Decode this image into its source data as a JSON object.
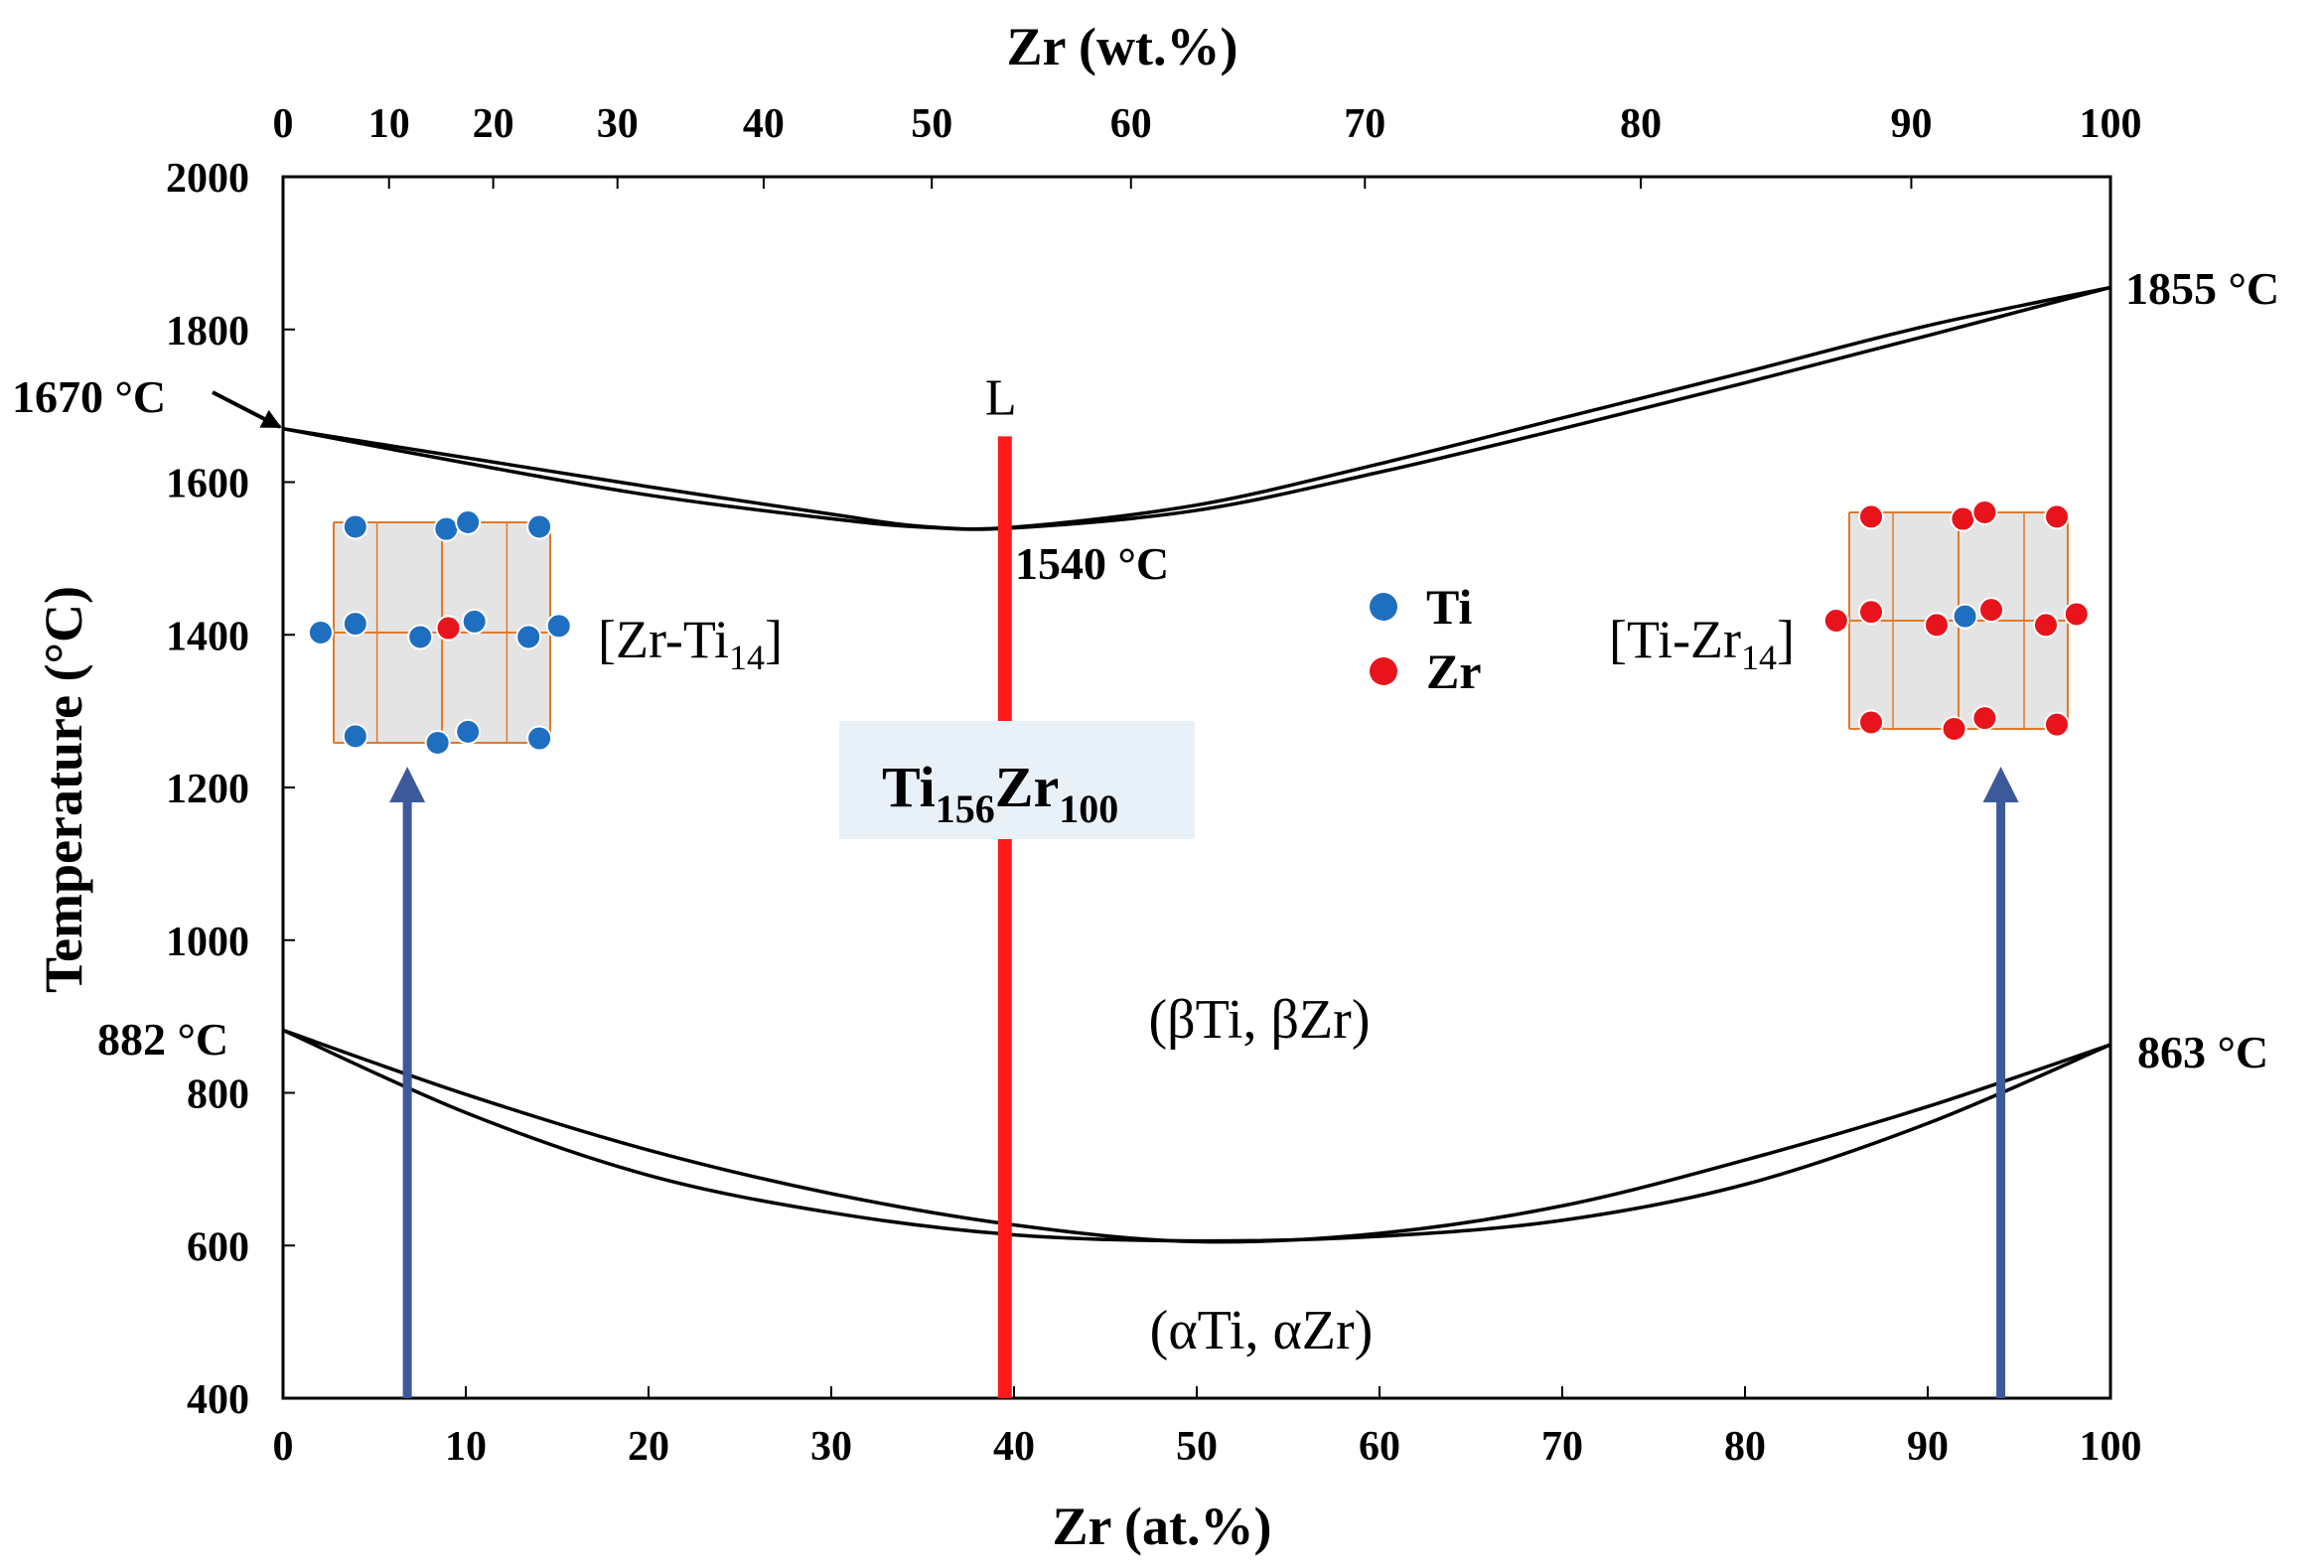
{
  "chart_data": {
    "type": "line",
    "title": "",
    "xlabel": "Zr (at.%)",
    "x2label": "Zr (wt.%)",
    "ylabel": "Temperature (°C)",
    "xlim": [
      0,
      100
    ],
    "ylim": [
      400,
      2000
    ],
    "x_ticks": [
      "0",
      "10",
      "20",
      "30",
      "40",
      "50",
      "60",
      "70",
      "80",
      "90",
      "100"
    ],
    "x_tick_values": [
      0,
      10,
      20,
      30,
      40,
      50,
      60,
      70,
      80,
      90,
      100
    ],
    "x2_ticks": [
      "0",
      "10",
      "20",
      "30",
      "40",
      "50",
      "60",
      "70",
      "80",
      "90",
      "100"
    ],
    "x2_tick_at_percent": [
      0,
      5.8,
      11.5,
      18.3,
      26.3,
      35.5,
      46.4,
      59.2,
      74.3,
      89.1,
      100
    ],
    "y_ticks": [
      "400",
      "600",
      "800",
      "1000",
      "1200",
      "1400",
      "1600",
      "1800",
      "2000"
    ],
    "y_tick_values": [
      400,
      600,
      800,
      1000,
      1200,
      1400,
      1600,
      1800,
      2000
    ],
    "series": [
      {
        "name": "liquidus",
        "x": [
          0,
          10,
          20,
          30,
          35,
          40,
          50,
          60,
          70,
          80,
          90,
          100
        ],
        "y": [
          1670,
          1632,
          1594,
          1558,
          1542,
          1541,
          1570,
          1624,
          1684,
          1744,
          1805,
          1855
        ]
      },
      {
        "name": "solidus",
        "x": [
          0,
          10,
          20,
          30,
          35,
          40,
          50,
          60,
          70,
          80,
          90,
          100
        ],
        "y": [
          1670,
          1625,
          1583,
          1552,
          1541,
          1540,
          1563,
          1613,
          1670,
          1730,
          1792,
          1855
        ]
      },
      {
        "name": "alpha-beta upper",
        "x": [
          0,
          10,
          20,
          30,
          40,
          50,
          60,
          70,
          80,
          90,
          100
        ],
        "y": [
          882,
          798,
          725,
          668,
          627,
          605,
          616,
          652,
          712,
          782,
          863
        ]
      },
      {
        "name": "alpha-beta lower",
        "x": [
          0,
          10,
          20,
          30,
          40,
          50,
          60,
          70,
          80,
          90,
          100
        ],
        "y": [
          882,
          774,
          692,
          643,
          614,
          606,
          612,
          633,
          680,
          760,
          863
        ]
      }
    ],
    "composition_line": {
      "x": 39.5,
      "y_from": 400,
      "y_to": 1660,
      "color": "#ff1a1a",
      "label": "L"
    },
    "annotations": [
      {
        "text": "1670 °C",
        "x": 0,
        "y": 1670
      },
      {
        "text": "1855 °C",
        "x": 100,
        "y": 1855
      },
      {
        "text": "1540 °C",
        "x": 39.5,
        "y": 1540
      },
      {
        "text": "882 °C",
        "x": 0,
        "y": 882
      },
      {
        "text": "863 °C",
        "x": 100,
        "y": 863
      }
    ],
    "phase_labels": {
      "beta": "(βTi, βZr)",
      "alpha": "(αTi, αZr)"
    },
    "composition_label": {
      "main1": "Ti",
      "sub1": "156",
      "main2": "Zr",
      "sub2": "100"
    },
    "legend": [
      {
        "label": "Ti",
        "color": "#1f6fc1"
      },
      {
        "label": "Zr",
        "color": "#e8141c"
      }
    ],
    "cluster_labels": [
      {
        "main": "[Zr-Ti",
        "sub": "14",
        "end": "]",
        "at_x": 6.8
      },
      {
        "main": "[Ti-Zr",
        "sub": "14",
        "end": "]",
        "at_x": 94
      }
    ],
    "colors": {
      "curve": "#000000",
      "arrow": "#3c5a9a",
      "atom_ti": "#1f6fc1",
      "atom_zr": "#e8141c",
      "bond": "#e07a2a",
      "cell_fill": "#e4e4e4"
    }
  }
}
